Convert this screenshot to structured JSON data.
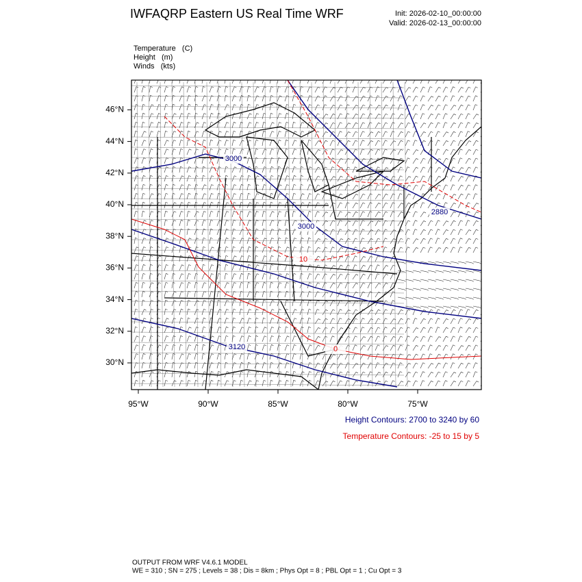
{
  "header": {
    "title": "IWFAQRP Eastern US Real Time WRF",
    "init": "Init: 2026-02-10_00:00:00",
    "valid": "Valid: 2026-02-13_00:00:00"
  },
  "fields": [
    "Temperature   (C)",
    "Height   (m)",
    "Winds   (kts)"
  ],
  "map": {
    "lon_ticks": [
      {
        "value": -95,
        "label": "95°W"
      },
      {
        "value": -90,
        "label": "90°W"
      },
      {
        "value": -85,
        "label": "85°W"
      },
      {
        "value": -80,
        "label": "80°W"
      },
      {
        "value": -75,
        "label": "75°W"
      }
    ],
    "lat_ticks": [
      {
        "value": 46,
        "label": "46°N"
      },
      {
        "value": 44,
        "label": "44°N"
      },
      {
        "value": 42,
        "label": "42°N"
      },
      {
        "value": 40,
        "label": "40°N"
      },
      {
        "value": 38,
        "label": "38°N"
      },
      {
        "value": 36,
        "label": "36°N"
      },
      {
        "value": 34,
        "label": "34°N"
      },
      {
        "value": 32,
        "label": "32°N"
      },
      {
        "value": 30,
        "label": "30°N"
      }
    ],
    "height_labels": [
      "3000",
      "3000",
      "2880",
      "3120"
    ],
    "temperature_labels": [
      "10",
      "0"
    ]
  },
  "legend": {
    "height": "Height Contours: 2700 to 3240 by 60",
    "temperature": "Temperature Contours: -25 to 15 by 5"
  },
  "footer": {
    "model": "OUTPUT FROM WRF V4.6.1 MODEL",
    "settings": "WE = 310 ; SN = 275 ; Levels = 38 ; Dis = 8km ; Phys Opt = 8 ; PBL Opt = 1 ; Cu Opt = 3"
  }
}
